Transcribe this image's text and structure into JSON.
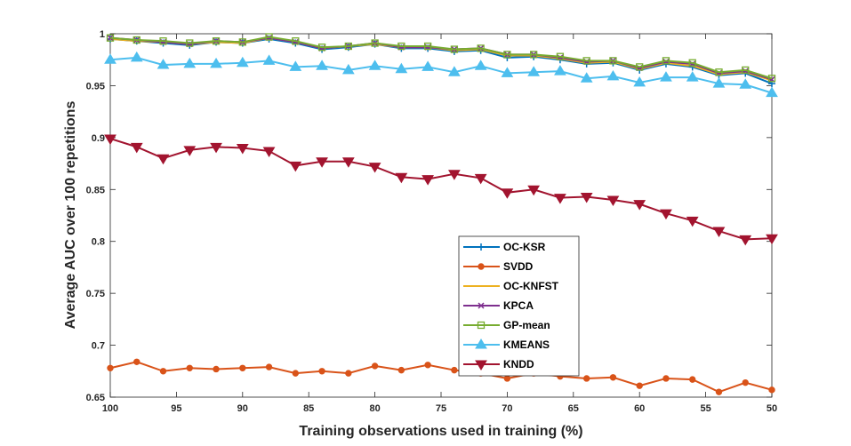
{
  "chart_data": {
    "type": "line",
    "title": "",
    "xlabel": "Training observations used in training (%)",
    "ylabel": "Average AUC over 100 repetitions",
    "x": [
      100,
      98,
      96,
      94,
      92,
      90,
      88,
      86,
      84,
      82,
      80,
      78,
      76,
      74,
      72,
      70,
      68,
      66,
      64,
      62,
      60,
      58,
      56,
      54,
      52,
      50
    ],
    "xlim": [
      100,
      50
    ],
    "ylim": [
      0.65,
      1.0
    ],
    "xticks": [
      100,
      95,
      90,
      85,
      80,
      75,
      70,
      65,
      60,
      55,
      50
    ],
    "yticks": [
      0.65,
      0.7,
      0.75,
      0.8,
      0.85,
      0.9,
      0.95,
      1
    ],
    "xtick_labels": [
      "100",
      "95",
      "90",
      "85",
      "80",
      "75",
      "70",
      "65",
      "60",
      "55",
      "50"
    ],
    "ytick_labels": [
      "0.65",
      "0.7",
      "0.75",
      "0.8",
      "0.85",
      "0.9",
      "0.95",
      "1"
    ],
    "grid": false,
    "legend_position": "center-bottom",
    "series": [
      {
        "name": "OC-KSR",
        "color": "#0072BD",
        "marker": "plus",
        "values": [
          0.995,
          0.993,
          0.991,
          0.989,
          0.992,
          0.991,
          0.995,
          0.991,
          0.985,
          0.987,
          0.99,
          0.986,
          0.986,
          0.983,
          0.984,
          0.977,
          0.978,
          0.975,
          0.971,
          0.972,
          0.965,
          0.971,
          0.968,
          0.96,
          0.962,
          0.952
        ]
      },
      {
        "name": "SVDD",
        "color": "#D95319",
        "marker": "circle",
        "values": [
          0.678,
          0.684,
          0.675,
          0.678,
          0.677,
          0.678,
          0.679,
          0.673,
          0.675,
          0.673,
          0.68,
          0.676,
          0.681,
          0.676,
          0.673,
          0.668,
          0.673,
          0.67,
          0.668,
          0.669,
          0.661,
          0.668,
          0.667,
          0.655,
          0.664,
          0.657
        ]
      },
      {
        "name": "OC-KNFST",
        "color": "#EDB120",
        "marker": "none",
        "values": [
          0.995,
          0.993,
          0.992,
          0.99,
          0.992,
          0.991,
          0.996,
          0.992,
          0.986,
          0.988,
          0.99,
          0.987,
          0.987,
          0.984,
          0.985,
          0.979,
          0.979,
          0.976,
          0.972,
          0.973,
          0.966,
          0.972,
          0.969,
          0.961,
          0.963,
          0.955
        ]
      },
      {
        "name": "KPCA",
        "color": "#7E2F8E",
        "marker": "x",
        "values": [
          0.996,
          0.994,
          0.992,
          0.99,
          0.993,
          0.992,
          0.996,
          0.992,
          0.986,
          0.988,
          0.991,
          0.987,
          0.987,
          0.985,
          0.986,
          0.98,
          0.98,
          0.977,
          0.973,
          0.974,
          0.967,
          0.973,
          0.971,
          0.962,
          0.964,
          0.956
        ]
      },
      {
        "name": "GP-mean",
        "color": "#77AC30",
        "marker": "square",
        "values": [
          0.996,
          0.994,
          0.993,
          0.991,
          0.993,
          0.992,
          0.997,
          0.993,
          0.987,
          0.988,
          0.991,
          0.988,
          0.988,
          0.985,
          0.986,
          0.98,
          0.98,
          0.978,
          0.974,
          0.974,
          0.968,
          0.974,
          0.972,
          0.963,
          0.965,
          0.957
        ]
      },
      {
        "name": "KMEANS",
        "color": "#4DBEEE",
        "marker": "triangle-up",
        "values": [
          0.975,
          0.977,
          0.97,
          0.971,
          0.971,
          0.972,
          0.974,
          0.968,
          0.969,
          0.965,
          0.969,
          0.966,
          0.968,
          0.963,
          0.969,
          0.962,
          0.963,
          0.964,
          0.957,
          0.959,
          0.953,
          0.958,
          0.958,
          0.952,
          0.951,
          0.943
        ]
      },
      {
        "name": "KNDD",
        "color": "#A2142F",
        "marker": "triangle-down",
        "values": [
          0.899,
          0.891,
          0.88,
          0.888,
          0.891,
          0.89,
          0.887,
          0.873,
          0.877,
          0.877,
          0.872,
          0.862,
          0.86,
          0.865,
          0.861,
          0.847,
          0.85,
          0.842,
          0.843,
          0.84,
          0.836,
          0.827,
          0.82,
          0.81,
          0.802,
          0.803
        ]
      }
    ]
  }
}
